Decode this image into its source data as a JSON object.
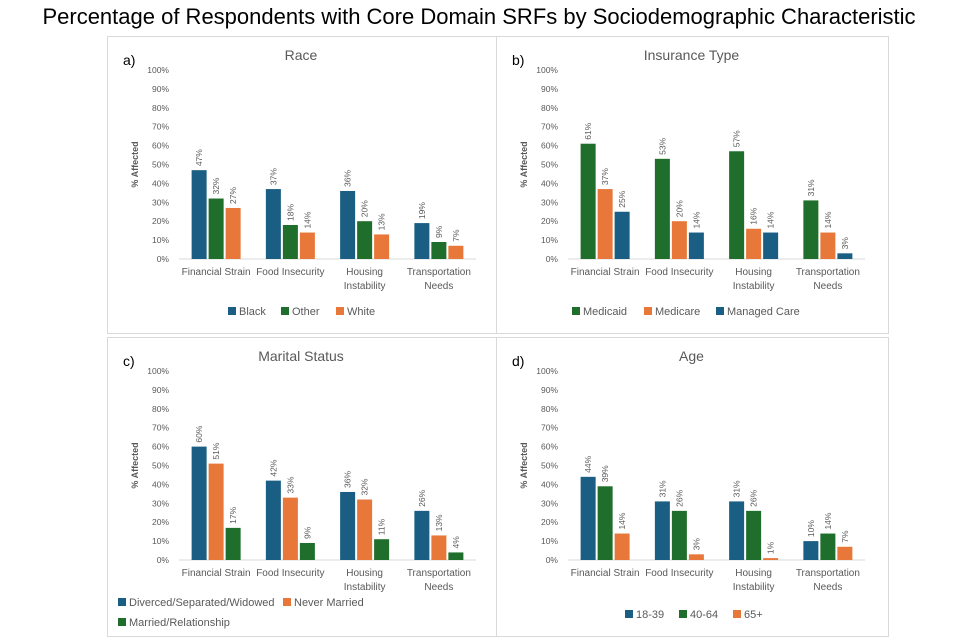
{
  "title": "Percentage of Respondents with Core Domain SRFs by Sociodemographic Characteristic",
  "colors": {
    "blue": "#1b5e83",
    "green": "#1f6e2b",
    "orange": "#e8773a"
  },
  "chart_data": [
    {
      "type": "bar",
      "letter": "a)",
      "title": "Race",
      "ylabel": "% Affected",
      "ylim": [
        0,
        100
      ],
      "yticks": [
        "0%",
        "10%",
        "20%",
        "30%",
        "40%",
        "50%",
        "60%",
        "70%",
        "80%",
        "90%",
        "100%"
      ],
      "categories": [
        [
          "Financial Strain"
        ],
        [
          "Food Insecurity"
        ],
        [
          "Housing",
          "Instability"
        ],
        [
          "Transportation",
          "Needs"
        ]
      ],
      "series": [
        {
          "name": "Black",
          "color": "#1b5e83",
          "values": [
            47,
            37,
            36,
            19
          ]
        },
        {
          "name": "Other",
          "color": "#1f6e2b",
          "values": [
            32,
            18,
            20,
            9
          ]
        },
        {
          "name": "White",
          "color": "#e8773a",
          "values": [
            27,
            14,
            13,
            7
          ]
        }
      ],
      "legend": "bottom"
    },
    {
      "type": "bar",
      "letter": "b)",
      "title": "Insurance Type",
      "ylabel": "% Affected",
      "ylim": [
        0,
        100
      ],
      "yticks": [
        "0%",
        "10%",
        "20%",
        "30%",
        "40%",
        "50%",
        "60%",
        "70%",
        "80%",
        "90%",
        "100%"
      ],
      "categories": [
        [
          "Financial Strain"
        ],
        [
          "Food Insecurity"
        ],
        [
          "Housing",
          "Instability"
        ],
        [
          "Transportation",
          "Needs"
        ]
      ],
      "series": [
        {
          "name": "Medicaid",
          "color": "#1f6e2b",
          "values": [
            61,
            53,
            57,
            31
          ]
        },
        {
          "name": "Medicare",
          "color": "#e8773a",
          "values": [
            37,
            20,
            16,
            14
          ]
        },
        {
          "name": "Managed Care",
          "color": "#1b5e83",
          "values": [
            25,
            14,
            14,
            3
          ]
        }
      ],
      "legend": "bottom"
    },
    {
      "type": "bar",
      "letter": "c)",
      "title": "Marital Status",
      "ylabel": "% Affected",
      "ylim": [
        0,
        100
      ],
      "yticks": [
        "0%",
        "10%",
        "20%",
        "30%",
        "40%",
        "50%",
        "60%",
        "70%",
        "80%",
        "90%",
        "100%"
      ],
      "categories": [
        [
          "Financial Strain"
        ],
        [
          "Food Insecurity"
        ],
        [
          "Housing",
          "Instability"
        ],
        [
          "Transportation",
          "Needs"
        ]
      ],
      "series": [
        {
          "name": "Diverced/Separated/Widowed",
          "color": "#1b5e83",
          "values": [
            60,
            42,
            36,
            26
          ]
        },
        {
          "name": "Never Married",
          "color": "#e8773a",
          "values": [
            51,
            33,
            32,
            13
          ]
        },
        {
          "name": "Married/Relationship",
          "color": "#1f6e2b",
          "values": [
            17,
            9,
            11,
            4
          ]
        }
      ],
      "legend": "bottom"
    },
    {
      "type": "bar",
      "letter": "d)",
      "title": "Age",
      "ylabel": "% Affected",
      "ylim": [
        0,
        100
      ],
      "yticks": [
        "0%",
        "10%",
        "20%",
        "30%",
        "40%",
        "50%",
        "60%",
        "70%",
        "80%",
        "90%",
        "100%"
      ],
      "categories": [
        [
          "Financial Strain"
        ],
        [
          "Food Insecurity"
        ],
        [
          "Housing",
          "Instability"
        ],
        [
          "Transportation",
          "Needs"
        ]
      ],
      "series": [
        {
          "name": "18-39",
          "color": "#1b5e83",
          "values": [
            44,
            31,
            31,
            10
          ]
        },
        {
          "name": "40-64",
          "color": "#1f6e2b",
          "values": [
            39,
            26,
            26,
            14
          ]
        },
        {
          "name": "65+",
          "color": "#e8773a",
          "values": [
            14,
            3,
            1,
            7
          ]
        }
      ],
      "legend": "bottom"
    }
  ]
}
